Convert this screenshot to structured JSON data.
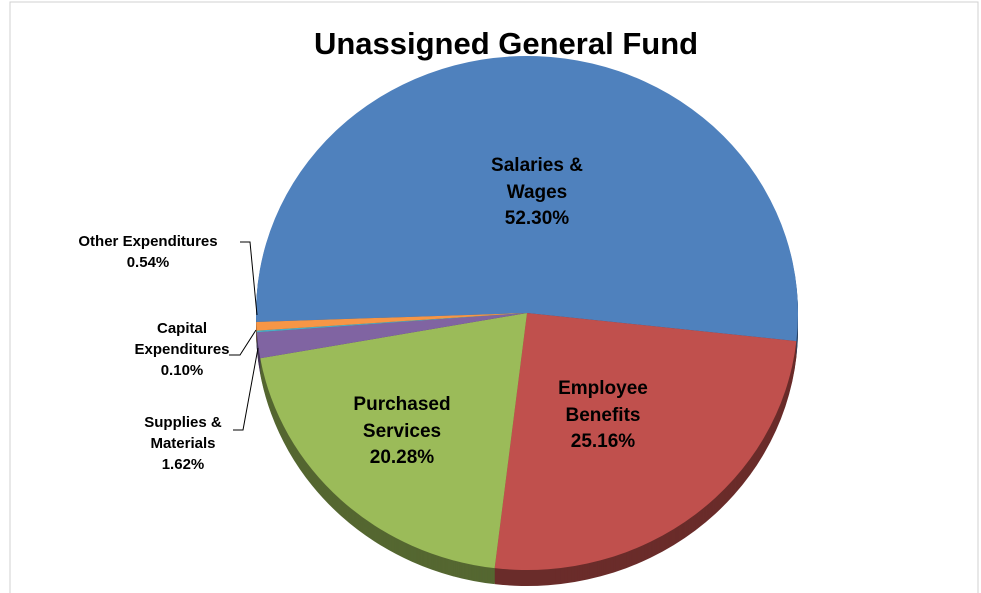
{
  "chart_data": {
    "type": "pie",
    "title": "Unassigned General Fund",
    "categories": [
      "Salaries & Wages",
      "Employee Benefits",
      "Purchased Services",
      "Supplies & Materials",
      "Capital Expenditures",
      "Other Expenditures"
    ],
    "values": [
      52.3,
      25.16,
      20.28,
      1.62,
      0.1,
      0.54
    ],
    "value_labels": [
      "52.30%",
      "25.16%",
      "20.28%",
      "1.62%",
      "0.10%",
      "0.54%"
    ],
    "colors": [
      "#4f81bd",
      "#c0504d",
      "#9bbb59",
      "#8064a2",
      "#4bacc6",
      "#f79646"
    ]
  }
}
